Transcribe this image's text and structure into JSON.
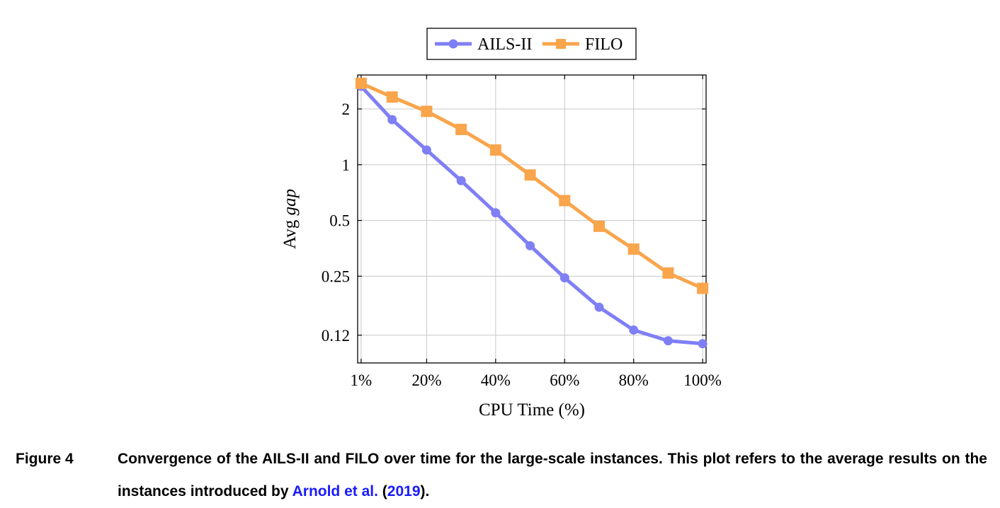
{
  "chart_data": {
    "type": "line",
    "x": [
      1,
      10,
      20,
      30,
      40,
      50,
      60,
      70,
      80,
      90,
      100
    ],
    "x_ticks": [
      1,
      20,
      40,
      60,
      80,
      100
    ],
    "x_tick_labels": [
      "1%",
      "20%",
      "40%",
      "60%",
      "80%",
      "100%"
    ],
    "xlim": [
      0,
      101
    ],
    "xlabel": "CPU Time (%)",
    "ylabel_prefix": "Avg ",
    "ylabel_italic": "gap",
    "y_scale": "log2",
    "y_ticks": [
      2,
      1,
      0.5,
      0.25,
      0.12
    ],
    "y_tick_labels": [
      "2",
      "1",
      "0.5",
      "0.25",
      "0.12"
    ],
    "ylim": [
      0.085,
      3.05
    ],
    "grid": true,
    "legend_position": "top-center",
    "series": [
      {
        "name": "AILS-II",
        "color": "#7f7ff5",
        "marker": "circle",
        "values": [
          2.65,
          1.75,
          1.2,
          0.82,
          0.55,
          0.365,
          0.245,
          0.17,
          0.128,
          0.112,
          0.108
        ]
      },
      {
        "name": "FILO",
        "color": "#f9a54c",
        "marker": "square",
        "values": [
          2.75,
          2.32,
          1.94,
          1.55,
          1.2,
          0.88,
          0.64,
          0.465,
          0.35,
          0.26,
          0.215
        ]
      }
    ]
  },
  "caption": {
    "label": "Figure 4",
    "text_before": "Convergence of the AILS-II and FILO over time for the large-scale instances. This plot refers to the average results on the instances introduced by ",
    "cite_author": "Arnold et al.",
    "cite_open": " (",
    "cite_year": "2019",
    "cite_close": ")."
  }
}
